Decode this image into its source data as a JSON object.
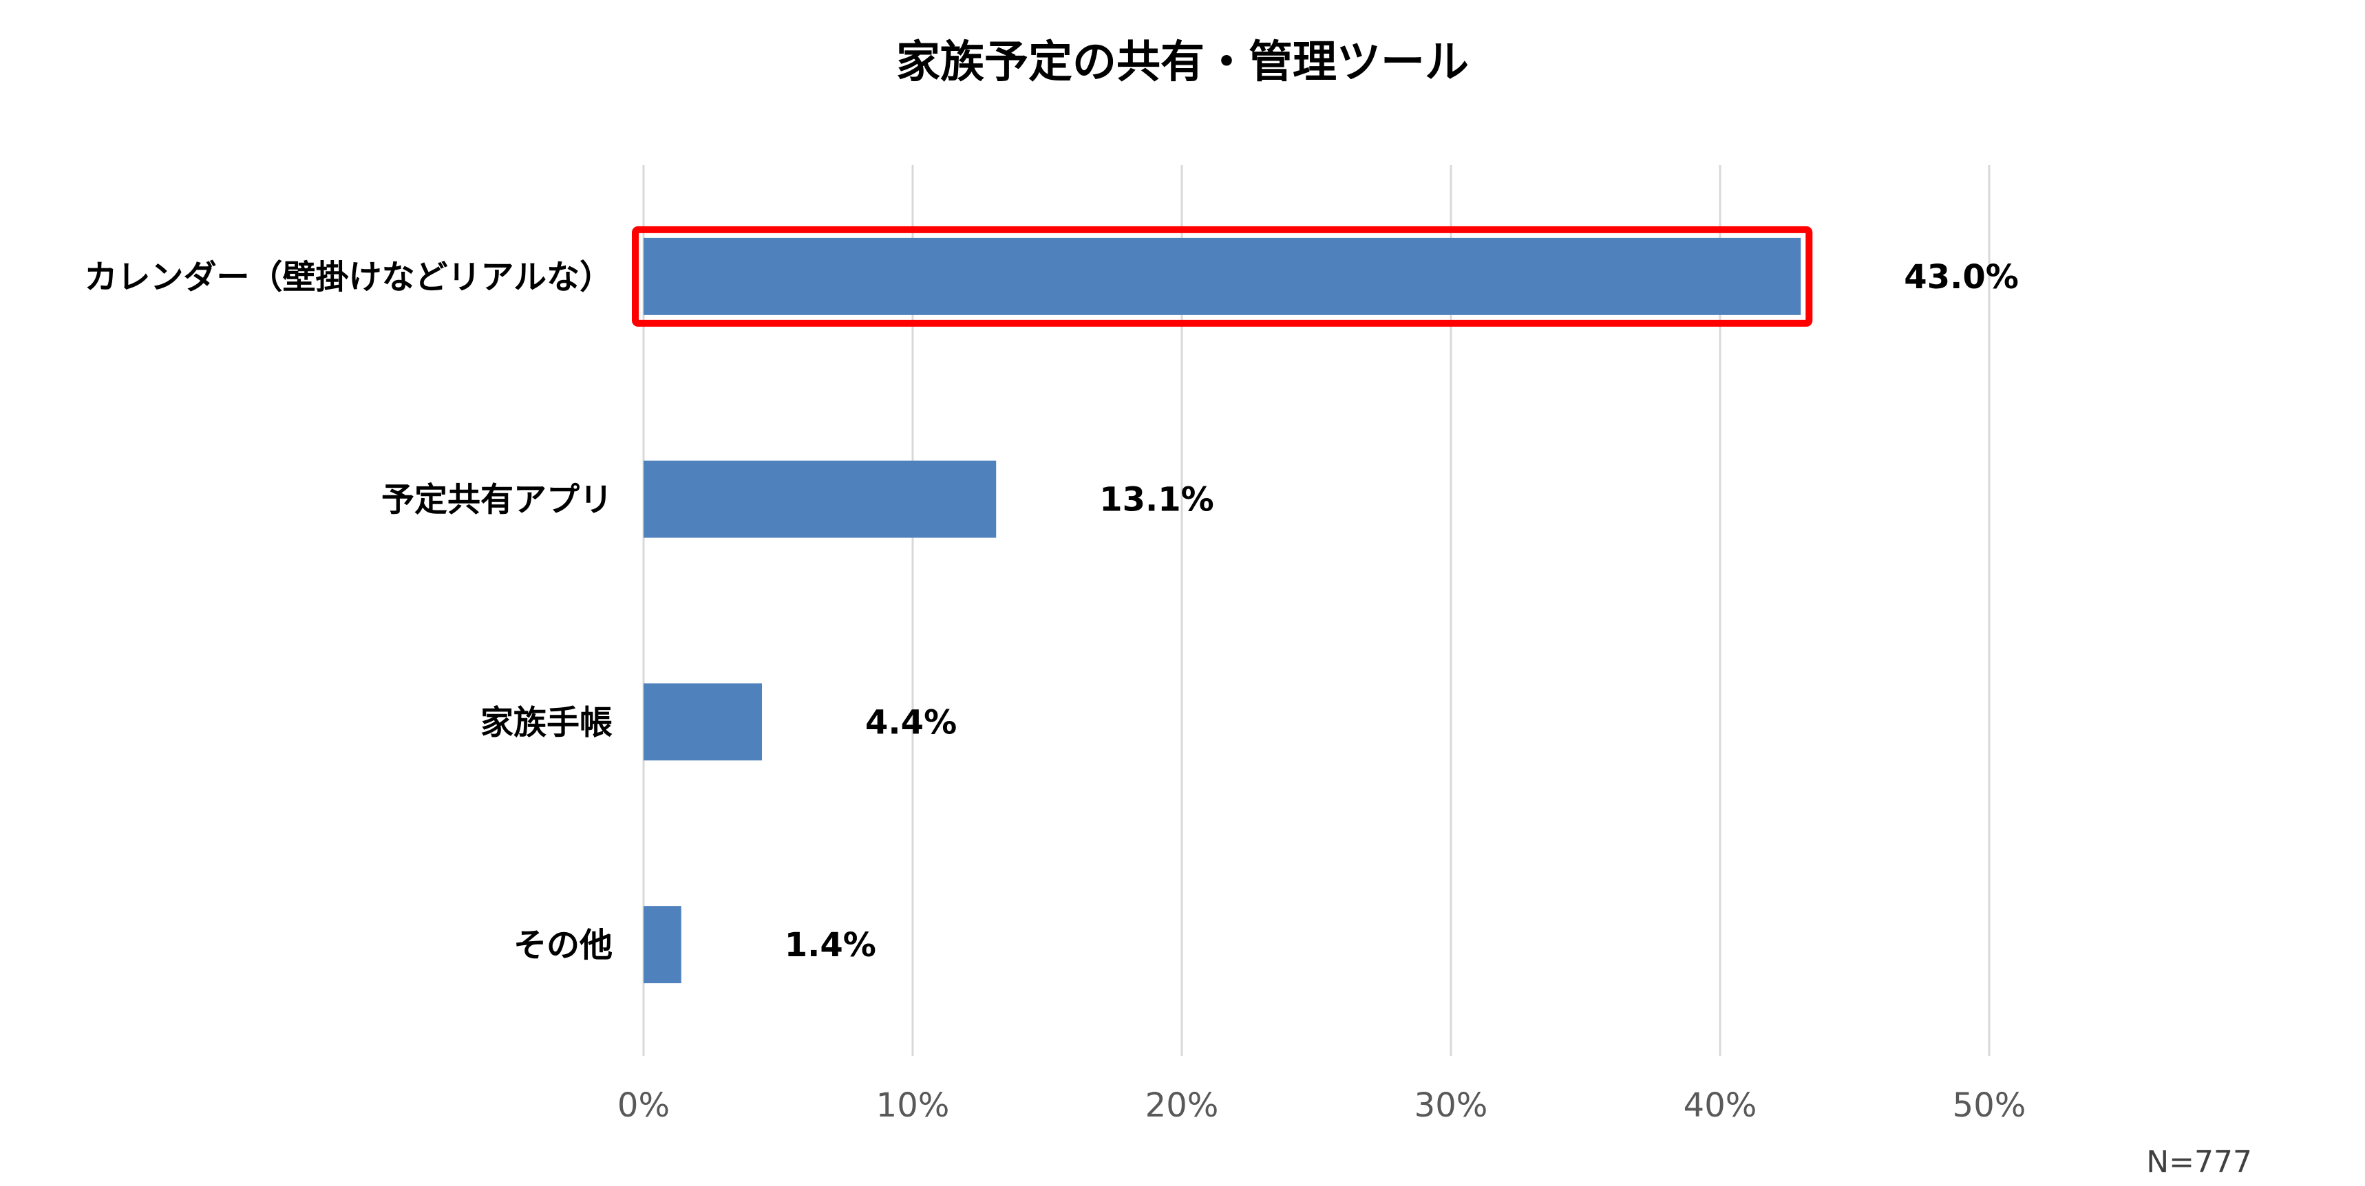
{
  "chart_data": {
    "type": "bar",
    "orientation": "horizontal",
    "title": "家族予定の共有・管理ツール",
    "categories": [
      "カレンダー（壁掛けなどリアルな）",
      "予定共有アプリ",
      "家族手帳",
      "その他"
    ],
    "values": [
      43.0,
      13.1,
      4.4,
      1.4
    ],
    "data_labels": [
      "43.0%",
      "13.1%",
      "4.4%",
      "1.4%"
    ],
    "xlim": [
      0,
      50
    ],
    "x_ticks": [
      0,
      10,
      20,
      30,
      40,
      50
    ],
    "x_tick_labels": [
      "0%",
      "10%",
      "20%",
      "30%",
      "40%",
      "50%"
    ],
    "grid": "vertical",
    "highlighted_category": "カレンダー（壁掛けなどリアルな）",
    "note": "N=777",
    "colors": {
      "bar": "#4F81BD",
      "highlight_border": "#FF0000",
      "grid": "#D9D9D9"
    }
  }
}
